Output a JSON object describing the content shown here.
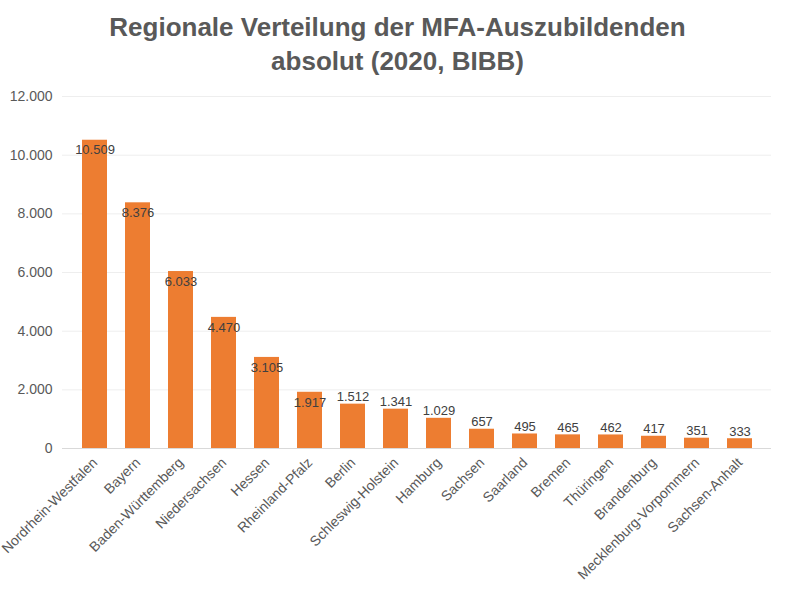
{
  "chart_data": {
    "type": "bar",
    "title": "Regionale Verteilung der MFA-Auszubildenden absolut (2020, BIBB)",
    "categories": [
      "Nordrhein-Westfalen",
      "Bayern",
      "Baden-Württemberg",
      "Niedersachsen",
      "Hessen",
      "Rheinland-Pfalz",
      "Berlin",
      "Schleswig-Holstein",
      "Hamburg",
      "Sachsen",
      "Saarland",
      "Bremen",
      "Thüringen",
      "Brandenburg",
      "Mecklenburg-Vorpommern",
      "Sachsen-Anhalt"
    ],
    "values": [
      10509,
      8376,
      6033,
      4470,
      3105,
      1917,
      1512,
      1341,
      1029,
      657,
      495,
      465,
      462,
      417,
      351,
      333
    ],
    "value_labels": [
      "10.509",
      "8.376",
      "6.033",
      "4.470",
      "3.105",
      "1.917",
      "1.512",
      "1.341",
      "1.029",
      "657",
      "495",
      "465",
      "462",
      "417",
      "351",
      "333"
    ],
    "color": "#ed7d31",
    "ylim": [
      0,
      12000
    ],
    "yticks": [
      0,
      {
        "value": 2000,
        "label": "2.000"
      },
      {
        "value": 4000,
        "label": "4.000"
      },
      {
        "value": 6000,
        "label": "6.000"
      },
      {
        "value": 8000,
        "label": "8.000"
      },
      {
        "value": 10000,
        "label": "10.000"
      },
      {
        "value": 12000,
        "label": "12.000"
      }
    ],
    "grid": true,
    "data_labels": true
  }
}
